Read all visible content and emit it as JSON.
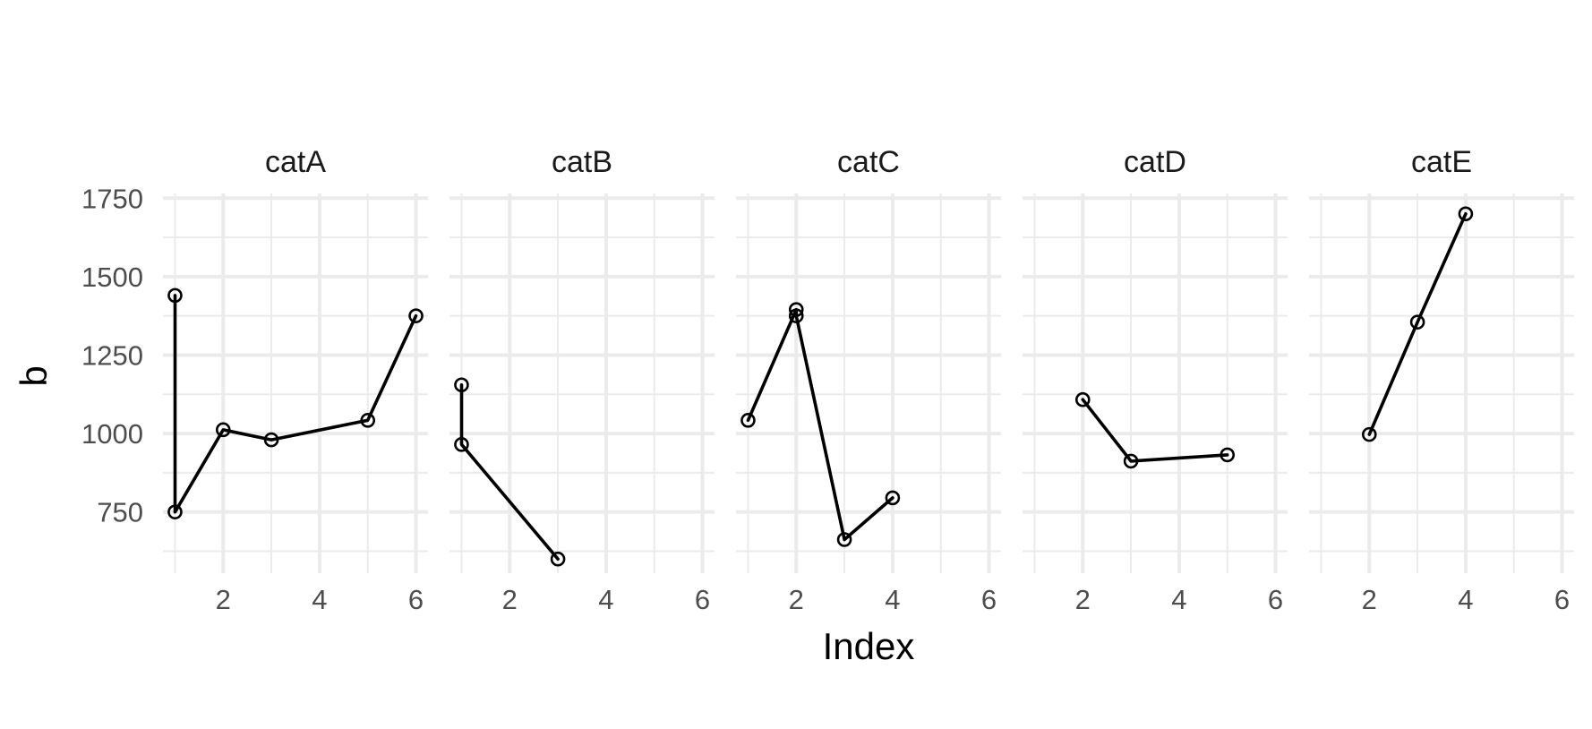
{
  "chart_data": {
    "type": "line",
    "facet_type": "small-multiples",
    "xlabel": "Index",
    "ylabel": "b",
    "xlim": [
      0.75,
      6.25
    ],
    "ylim": [
      555,
      1765
    ],
    "x_ticks": [
      2,
      4,
      6
    ],
    "x_tick_labels": [
      "2",
      "4",
      "6"
    ],
    "y_ticks": [
      750,
      1000,
      1250,
      1500,
      1750
    ],
    "y_tick_labels": [
      "750",
      "1000",
      "1250",
      "1500",
      "1750"
    ],
    "grid": true,
    "legend": "none",
    "line_color": "#000000",
    "marker": "open-circle",
    "facets": [
      {
        "name": "catA",
        "points": [
          {
            "x": 1,
            "y": 1440
          },
          {
            "x": 1,
            "y": 750
          },
          {
            "x": 2,
            "y": 1012
          },
          {
            "x": 3,
            "y": 980
          },
          {
            "x": 5,
            "y": 1042
          },
          {
            "x": 6,
            "y": 1375
          }
        ]
      },
      {
        "name": "catB",
        "points": [
          {
            "x": 1,
            "y": 1155
          },
          {
            "x": 1,
            "y": 965
          },
          {
            "x": 3,
            "y": 600
          }
        ]
      },
      {
        "name": "catC",
        "points": [
          {
            "x": 1,
            "y": 1042
          },
          {
            "x": 2,
            "y": 1395
          },
          {
            "x": 2,
            "y": 1375
          },
          {
            "x": 3,
            "y": 662
          },
          {
            "x": 4,
            "y": 795
          }
        ]
      },
      {
        "name": "catD",
        "points": [
          {
            "x": 2,
            "y": 1108
          },
          {
            "x": 3,
            "y": 912
          },
          {
            "x": 5,
            "y": 932
          }
        ]
      },
      {
        "name": "catE",
        "points": [
          {
            "x": 2,
            "y": 997
          },
          {
            "x": 3,
            "y": 1355
          },
          {
            "x": 4,
            "y": 1700
          }
        ]
      }
    ]
  }
}
